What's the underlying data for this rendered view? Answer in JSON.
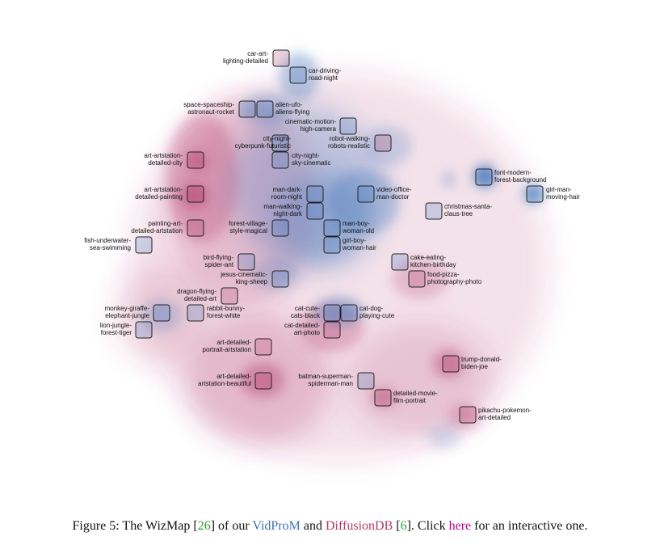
{
  "caption": {
    "prefix": "Figure 5: The WizMap [",
    "ref1": "26",
    "mid1": "] of our ",
    "dataset1": "VidProM",
    "mid2": " and ",
    "dataset2": "DiffusionDB",
    "mid3": " [",
    "ref2": "6",
    "mid4": "]. Click ",
    "link": "here",
    "suffix": " for an interactive one."
  },
  "colors": {
    "vidprom": "#3b73b9",
    "diffusiondb": "#b23a6b",
    "ref": "#2ca02c",
    "link": "#c4008f"
  },
  "clusters": [
    {
      "id": "car-art",
      "lines": [
        "car-art-",
        "lighting-detailed"
      ]
    },
    {
      "id": "car-driving",
      "lines": [
        "car-driving-",
        "road-night"
      ]
    },
    {
      "id": "space-spaceship",
      "lines": [
        "space-spaceship-",
        "astronaut-rocket"
      ]
    },
    {
      "id": "alien-ufo",
      "lines": [
        "alien-ufo-",
        "aliens-flying"
      ]
    },
    {
      "id": "cinematic-motion",
      "lines": [
        "cinematic-motion-",
        "high-camera"
      ]
    },
    {
      "id": "city-night-cyber",
      "lines": [
        "city-night-",
        "cyberpunk-futuristic"
      ]
    },
    {
      "id": "robot-walking",
      "lines": [
        "robot-walking-",
        "robots-realistic"
      ]
    },
    {
      "id": "art-artstation-city",
      "lines": [
        "art-artstation-",
        "detailed-city"
      ]
    },
    {
      "id": "city-night-sky",
      "lines": [
        "city-night-",
        "sky-cinematic"
      ]
    },
    {
      "id": "font-modern",
      "lines": [
        "font-modern-",
        "forest-background"
      ]
    },
    {
      "id": "art-artstation-painting",
      "lines": [
        "art-artstation-",
        "detailed-painting"
      ]
    },
    {
      "id": "man-dark",
      "lines": [
        "man-dark-",
        "room-night"
      ]
    },
    {
      "id": "video-office",
      "lines": [
        "video-office-",
        "man-doctor"
      ]
    },
    {
      "id": "girl-man",
      "lines": [
        "girl-man-",
        "moving-hair"
      ]
    },
    {
      "id": "christmas-santa",
      "lines": [
        "christmas-santa-",
        "claus-tree"
      ]
    },
    {
      "id": "man-walking",
      "lines": [
        "man-walking-",
        "night-dark"
      ]
    },
    {
      "id": "painting-art",
      "lines": [
        "painting-art-",
        "detailed-artstation"
      ]
    },
    {
      "id": "forest-village",
      "lines": [
        "forest-village-",
        "style-magical"
      ]
    },
    {
      "id": "man-boy",
      "lines": [
        "man-boy-",
        "woman-old"
      ]
    },
    {
      "id": "fish-underwater",
      "lines": [
        "fish-underwater-",
        "sea-swimming"
      ]
    },
    {
      "id": "girl-boy",
      "lines": [
        "girl-boy-",
        "woman-hair"
      ]
    },
    {
      "id": "bird-flying",
      "lines": [
        "bird-flying-",
        "spider-ant"
      ]
    },
    {
      "id": "cake-eating",
      "lines": [
        "cake-eating-",
        "kitchen-birthday"
      ]
    },
    {
      "id": "jesus-cinematic",
      "lines": [
        "jesus-cinematic-",
        "king-sheep"
      ]
    },
    {
      "id": "food-pizza",
      "lines": [
        "food-pizza-",
        "photography-photo"
      ]
    },
    {
      "id": "dragon-flying",
      "lines": [
        "dragon-flying-",
        "detailed-art"
      ]
    },
    {
      "id": "monkey-giraffe",
      "lines": [
        "monkey-giraffe-",
        "elephant-jungle"
      ]
    },
    {
      "id": "rabbit-bunny",
      "lines": [
        "rabbit-bunny-",
        "forest-white"
      ]
    },
    {
      "id": "cat-cute",
      "lines": [
        "cat-cute-",
        "cats-black"
      ]
    },
    {
      "id": "cat-dog",
      "lines": [
        "cat-dog-",
        "playing-cute"
      ]
    },
    {
      "id": "lion-jungle",
      "lines": [
        "lion-jungle-",
        "forest-tiger"
      ]
    },
    {
      "id": "cat-detailed",
      "lines": [
        "cat-detailed-",
        "art-photo"
      ]
    },
    {
      "id": "art-detailed-portrait",
      "lines": [
        "art-detailed-",
        "portrait-artstation"
      ]
    },
    {
      "id": "trump-donald",
      "lines": [
        "trump-donald-",
        "biden-joe"
      ]
    },
    {
      "id": "art-detailed-beautiful",
      "lines": [
        "art-detailed-",
        "artstation-beautiful"
      ]
    },
    {
      "id": "batman-superman",
      "lines": [
        "batman-superman-",
        "spiderman-man"
      ]
    },
    {
      "id": "detailed-movie",
      "lines": [
        "detailed-movie-",
        "film-portrait"
      ]
    },
    {
      "id": "pikachu-pokemon",
      "lines": [
        "pikachu-pokemon-",
        "art-detailed"
      ]
    }
  ]
}
